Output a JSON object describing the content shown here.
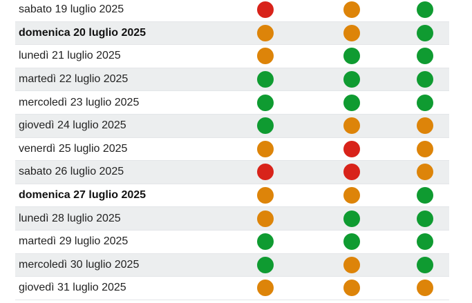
{
  "calendar": {
    "rows": [
      {
        "date": "sabato 19 luglio 2025",
        "bold": false,
        "levels": [
          "red",
          "orange",
          "green"
        ]
      },
      {
        "date": "domenica 20 luglio 2025",
        "bold": true,
        "levels": [
          "orange",
          "orange",
          "green"
        ]
      },
      {
        "date": "lunedì 21 luglio 2025",
        "bold": false,
        "levels": [
          "orange",
          "green",
          "green"
        ]
      },
      {
        "date": "martedì 22 luglio 2025",
        "bold": false,
        "levels": [
          "green",
          "green",
          "green"
        ]
      },
      {
        "date": "mercoledì 23 luglio 2025",
        "bold": false,
        "levels": [
          "green",
          "green",
          "green"
        ]
      },
      {
        "date": "giovedì 24 luglio 2025",
        "bold": false,
        "levels": [
          "green",
          "orange",
          "orange"
        ]
      },
      {
        "date": "venerdì 25 luglio 2025",
        "bold": false,
        "levels": [
          "orange",
          "red",
          "orange"
        ]
      },
      {
        "date": "sabato 26 luglio 2025",
        "bold": false,
        "levels": [
          "red",
          "red",
          "orange"
        ]
      },
      {
        "date": "domenica 27 luglio 2025",
        "bold": true,
        "levels": [
          "orange",
          "orange",
          "green"
        ]
      },
      {
        "date": "lunedì 28 luglio 2025",
        "bold": false,
        "levels": [
          "orange",
          "green",
          "green"
        ]
      },
      {
        "date": "martedì 29 luglio 2025",
        "bold": false,
        "levels": [
          "green",
          "green",
          "green"
        ]
      },
      {
        "date": "mercoledì 30 luglio 2025",
        "bold": false,
        "levels": [
          "green",
          "orange",
          "green"
        ]
      },
      {
        "date": "giovedì 31 luglio 2025",
        "bold": false,
        "levels": [
          "orange",
          "orange",
          "orange"
        ]
      }
    ],
    "colors": {
      "red": "#d8231a",
      "orange": "#dd8409",
      "green": "#0f9b31",
      "row_shade": "#eceeef"
    }
  }
}
